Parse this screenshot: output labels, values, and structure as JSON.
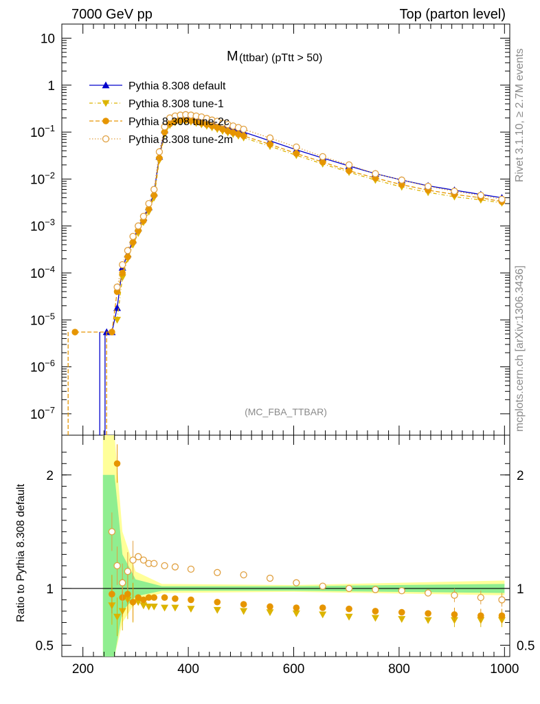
{
  "header": {
    "left": "7000 GeV pp",
    "right": "Top (parton level)"
  },
  "side": {
    "rivet": "Rivet 3.1.10, ≥ 2.7M events",
    "mcplots": "mcplots.cern.ch [arXiv:1306.3436]"
  },
  "plot": {
    "title_main": "M",
    "title_sub": " (ttbar) (pTtt > 50)",
    "watermark": "(MC_FBA_TTBAR)",
    "ratio_ylabel": "Ratio to Pythia 8.308 default"
  },
  "colors": {
    "default": "#0000cc",
    "tune1": "#dcb400",
    "tune2c": "#e69500",
    "tune2m": "#e0a040",
    "band_inner": "#90ee90",
    "band_outer": "#ffff99"
  },
  "chart_data": [
    {
      "type": "line",
      "scale": "log",
      "xlim": [
        160,
        1010
      ],
      "ylim": [
        3.5e-08,
        20
      ],
      "ytick_labels": [
        "10",
        "1",
        "10^-1",
        "10^-2",
        "10^-3",
        "10^-4",
        "10^-5",
        "10^-6",
        "10^-7"
      ],
      "series": [
        {
          "name": "Pythia 8.308 default",
          "marker": "triangle-up",
          "x": [
            245,
            255,
            265,
            275,
            285,
            295,
            305,
            315,
            325,
            335,
            345,
            355,
            365,
            375,
            385,
            395,
            405,
            415,
            425,
            435,
            445,
            455,
            465,
            475,
            485,
            495,
            505,
            555,
            605,
            655,
            705,
            755,
            805,
            855,
            905,
            955,
            995
          ],
          "y": [
            5.5e-06,
            5.5e-06,
            1.8e-05,
            0.00013,
            0.00025,
            0.0005,
            0.0009,
            0.0015,
            0.0025,
            0.005,
            0.03,
            0.11,
            0.17,
            0.19,
            0.2,
            0.2,
            0.2,
            0.19,
            0.18,
            0.17,
            0.16,
            0.15,
            0.14,
            0.13,
            0.12,
            0.11,
            0.1,
            0.065,
            0.042,
            0.028,
            0.019,
            0.013,
            0.0095,
            0.0072,
            0.0058,
            0.0047,
            0.004
          ]
        },
        {
          "name": "Pythia 8.308 tune-1",
          "marker": "triangle-down",
          "x": [
            265,
            275,
            285,
            295,
            305,
            315,
            325,
            335,
            345,
            355,
            365,
            375,
            385,
            395,
            405,
            415,
            425,
            435,
            445,
            455,
            465,
            475,
            485,
            495,
            505,
            555,
            605,
            655,
            705,
            755,
            805,
            855,
            905,
            955,
            995
          ],
          "y": [
            1e-05,
            8e-05,
            0.0002,
            0.0004,
            0.0007,
            0.0012,
            0.002,
            0.004,
            0.025,
            0.09,
            0.14,
            0.16,
            0.17,
            0.17,
            0.165,
            0.155,
            0.145,
            0.135,
            0.125,
            0.115,
            0.105,
            0.097,
            0.09,
            0.083,
            0.076,
            0.05,
            0.032,
            0.021,
            0.014,
            0.0095,
            0.0068,
            0.0052,
            0.0042,
            0.0036,
            0.0031
          ]
        },
        {
          "name": "Pythia 8.308 tune-2c",
          "marker": "circle",
          "x": [
            185,
            255,
            265,
            275,
            285,
            295,
            305,
            315,
            325,
            335,
            345,
            355,
            365,
            375,
            385,
            395,
            405,
            415,
            425,
            435,
            445,
            455,
            465,
            475,
            485,
            495,
            505,
            555,
            605,
            655,
            705,
            755,
            805,
            855,
            905,
            955,
            995
          ],
          "y": [
            5.5e-06,
            5.5e-06,
            4e-05,
            0.0001,
            0.00022,
            0.00045,
            0.0008,
            0.0013,
            0.0023,
            0.0045,
            0.028,
            0.1,
            0.15,
            0.17,
            0.18,
            0.18,
            0.175,
            0.165,
            0.155,
            0.145,
            0.135,
            0.125,
            0.115,
            0.105,
            0.097,
            0.09,
            0.083,
            0.055,
            0.035,
            0.023,
            0.015,
            0.0105,
            0.0076,
            0.0058,
            0.0047,
            0.004,
            0.0033
          ]
        },
        {
          "name": "Pythia 8.308 tune-2m",
          "marker": "circle-open",
          "x": [
            265,
            275,
            285,
            295,
            305,
            315,
            325,
            335,
            345,
            355,
            365,
            375,
            385,
            395,
            405,
            415,
            425,
            435,
            445,
            455,
            465,
            475,
            485,
            495,
            505,
            555,
            605,
            655,
            705,
            755,
            805,
            855,
            905,
            955,
            995
          ],
          "y": [
            5e-05,
            0.00015,
            0.0003,
            0.0006,
            0.001,
            0.0016,
            0.003,
            0.006,
            0.038,
            0.13,
            0.2,
            0.22,
            0.23,
            0.235,
            0.23,
            0.22,
            0.21,
            0.195,
            0.18,
            0.17,
            0.155,
            0.145,
            0.135,
            0.125,
            0.115,
            0.075,
            0.048,
            0.03,
            0.02,
            0.013,
            0.0095,
            0.007,
            0.0055,
            0.0045,
            0.0037
          ]
        }
      ]
    },
    {
      "type": "scatter",
      "xlim": [
        160,
        1010
      ],
      "ylim": [
        0.4,
        2.35
      ],
      "xticks": [
        200,
        400,
        600,
        800,
        1000
      ],
      "yticks": [
        0.5,
        1,
        2
      ],
      "ylabel": "Ratio to Pythia 8.308 default",
      "series": [
        {
          "name": "Pythia 8.308 tune-1",
          "x": [
            255,
            265,
            275,
            285,
            295,
            305,
            315,
            325,
            335,
            355,
            375,
            405,
            455,
            505,
            555,
            605,
            655,
            705,
            755,
            805,
            855,
            905,
            955,
            995
          ],
          "y": [
            0.85,
            0.75,
            0.8,
            0.9,
            0.87,
            0.88,
            0.85,
            0.84,
            0.84,
            0.83,
            0.83,
            0.82,
            0.81,
            0.8,
            0.79,
            0.78,
            0.77,
            0.75,
            0.74,
            0.73,
            0.72,
            0.72,
            0.72,
            0.72
          ]
        },
        {
          "name": "Pythia 8.308 tune-2c",
          "x": [
            255,
            265,
            275,
            285,
            295,
            305,
            315,
            325,
            335,
            355,
            375,
            405,
            455,
            505,
            555,
            605,
            655,
            705,
            755,
            805,
            855,
            905,
            955,
            995
          ],
          "y": [
            0.95,
            2.1,
            0.92,
            0.95,
            0.88,
            0.92,
            0.9,
            0.92,
            0.92,
            0.92,
            0.91,
            0.9,
            0.88,
            0.86,
            0.84,
            0.83,
            0.83,
            0.82,
            0.8,
            0.79,
            0.78,
            0.77,
            0.76,
            0.76
          ]
        },
        {
          "name": "Pythia 8.308 tune-2m",
          "x": [
            255,
            265,
            275,
            285,
            295,
            305,
            315,
            325,
            335,
            355,
            375,
            405,
            455,
            505,
            555,
            605,
            655,
            705,
            755,
            805,
            855,
            905,
            955,
            995
          ],
          "y": [
            1.5,
            1.2,
            1.05,
            1.15,
            1.25,
            1.28,
            1.25,
            1.22,
            1.22,
            1.2,
            1.19,
            1.17,
            1.14,
            1.12,
            1.09,
            1.05,
            1.02,
            1.0,
            0.99,
            0.98,
            0.96,
            0.94,
            0.92,
            0.9
          ]
        }
      ]
    }
  ]
}
